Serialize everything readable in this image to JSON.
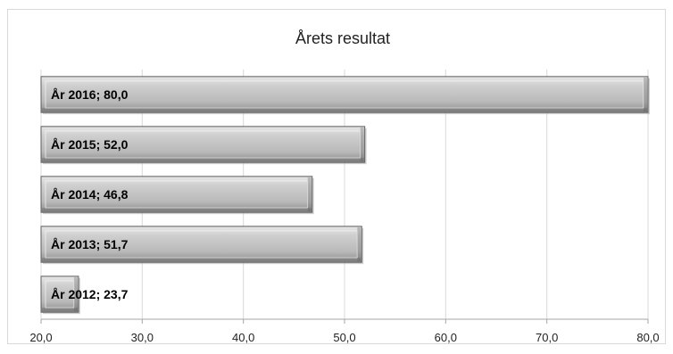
{
  "chart_data": {
    "type": "bar",
    "orientation": "horizontal",
    "title": "Årets resultat",
    "xlabel": "",
    "ylabel": "",
    "categories": [
      "År 2012",
      "År 2013",
      "År 2014",
      "År 2015",
      "År 2016"
    ],
    "values": [
      23.7,
      51.7,
      46.8,
      52.0,
      80.0
    ],
    "data_labels": [
      "År 2012; 23,7",
      "År 2013; 51,7",
      "År 2014; 46,8",
      "År 2015; 52,0",
      "År 2016; 80,0"
    ],
    "xlim": [
      20,
      80
    ],
    "xticks": [
      20,
      30,
      40,
      50,
      60,
      70,
      80
    ],
    "xtick_labels": [
      "20,0",
      "30,0",
      "40,0",
      "50,0",
      "60,0",
      "70,0",
      "80,0"
    ],
    "grid": "vertical",
    "legend": "none",
    "colors": {
      "bar_fill": "#b9b9b9",
      "bar_light": "#e6e6e6",
      "bar_dark": "#5e5e5e",
      "gridline": "#d9d9d9",
      "axis": "#a6a6a6"
    }
  }
}
